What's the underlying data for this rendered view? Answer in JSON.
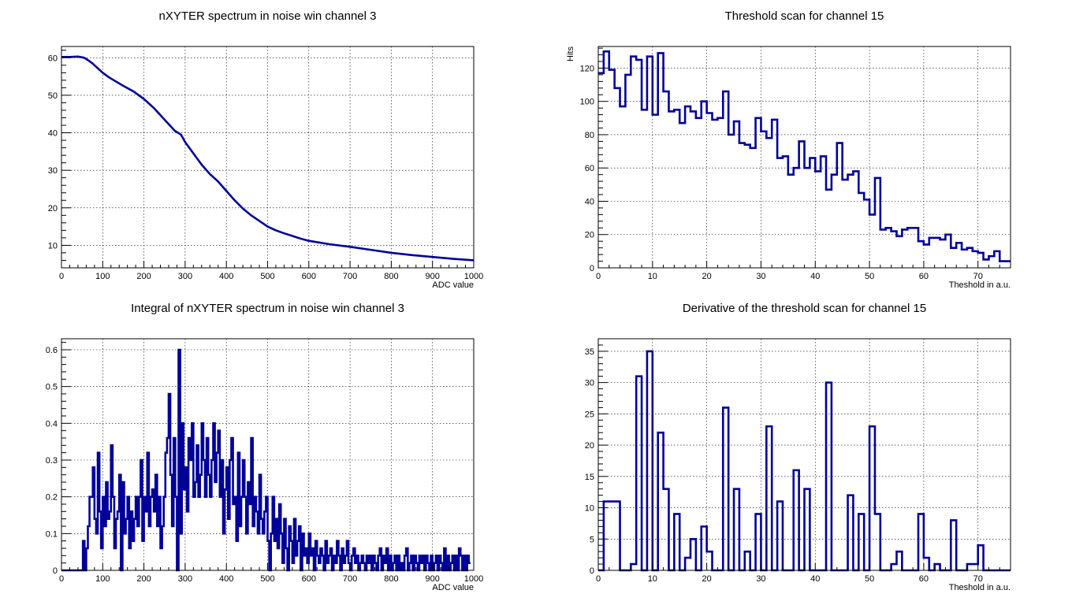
{
  "chart_data": [
    {
      "type": "line",
      "title": "nXYTER spectrum in noise win channel 3",
      "xlabel": "ADC value",
      "ylabel": "",
      "xlim": [
        0,
        1000
      ],
      "ylim": [
        4,
        63
      ],
      "xticks": [
        0,
        100,
        200,
        300,
        400,
        500,
        600,
        700,
        800,
        900,
        1000
      ],
      "yticks": [
        10,
        20,
        30,
        40,
        50,
        60
      ],
      "grid": true,
      "color": "#000099",
      "x": [
        0,
        20,
        40,
        55,
        65,
        75,
        85,
        100,
        115,
        130,
        150,
        175,
        200,
        225,
        250,
        275,
        290,
        300,
        320,
        340,
        360,
        380,
        400,
        420,
        440,
        460,
        480,
        500,
        520,
        540,
        560,
        580,
        600,
        650,
        700,
        750,
        800,
        850,
        900,
        950,
        1000
      ],
      "y": [
        60.2,
        60.2,
        60.3,
        60.0,
        59.3,
        58.5,
        57.5,
        56.0,
        54.8,
        53.8,
        52.5,
        51.0,
        49.0,
        46.5,
        43.5,
        40.5,
        39.5,
        37.5,
        34.5,
        31.5,
        29.0,
        27.0,
        24.5,
        22.0,
        19.8,
        18.0,
        16.5,
        15.0,
        14.0,
        13.2,
        12.5,
        11.8,
        11.2,
        10.3,
        9.6,
        8.8,
        8.0,
        7.4,
        6.9,
        6.4,
        6.0
      ]
    },
    {
      "type": "line",
      "title": "Integral of nXYTER spectrum in noise win channel 3",
      "xlabel": "ADC value",
      "ylabel": "",
      "xlim": [
        0,
        1000
      ],
      "ylim": [
        0,
        0.63
      ],
      "xticks": [
        0,
        100,
        200,
        300,
        400,
        500,
        600,
        700,
        800,
        900,
        1000
      ],
      "yticks": [
        0,
        0.1,
        0.2,
        0.3,
        0.4,
        0.5,
        0.6
      ],
      "ytick_labels": [
        "0",
        "0.1",
        "0.2",
        "0.3",
        "0.4",
        "0.5",
        "0.6"
      ],
      "grid": true,
      "color": "#000099",
      "step": "hist",
      "x0": 0,
      "bin_width": 4,
      "values": [
        0,
        0,
        0,
        0,
        0,
        0,
        0,
        0,
        0,
        0,
        0,
        0,
        0,
        0.08,
        0,
        0.06,
        0.12,
        0.2,
        0.2,
        0.28,
        0.14,
        0.1,
        0.32,
        0.16,
        0.06,
        0.2,
        0.12,
        0.24,
        0.14,
        0.16,
        0.34,
        0.2,
        0.06,
        0.14,
        0.16,
        0.26,
        0,
        0.24,
        0.1,
        0.14,
        0.2,
        0.06,
        0.16,
        0.08,
        0.14,
        0.2,
        0.12,
        0.2,
        0.3,
        0.08,
        0.2,
        0.16,
        0.32,
        0.12,
        0.2,
        0.22,
        0.16,
        0.26,
        0.12,
        0.2,
        0.06,
        0.12,
        0.2,
        0.32,
        0.36,
        0.48,
        0.26,
        0.12,
        0.36,
        0.2,
        0,
        0.6,
        0.1,
        0.4,
        0.22,
        0.28,
        0.16,
        0.36,
        0.3,
        0.4,
        0.2,
        0.24,
        0.34,
        0.2,
        0.26,
        0.4,
        0.3,
        0.2,
        0.36,
        0.26,
        0.2,
        0.3,
        0.4,
        0.24,
        0.32,
        0.38,
        0.2,
        0.3,
        0.1,
        0.22,
        0.28,
        0.14,
        0.3,
        0.36,
        0.18,
        0.2,
        0.08,
        0.32,
        0.12,
        0.2,
        0.3,
        0.2,
        0.1,
        0.24,
        0.18,
        0.36,
        0.12,
        0.2,
        0.16,
        0.1,
        0.26,
        0.14,
        0.1,
        0.16,
        0.2,
        0.08,
        0,
        0.1,
        0.2,
        0.08,
        0.14,
        0.06,
        0.18,
        0.1,
        0.02,
        0.14,
        0.06,
        0,
        0.12,
        0.08,
        0.02,
        0.14,
        0.04,
        0.08,
        0.12,
        0,
        0.1,
        0.04,
        0.06,
        0.02,
        0.1,
        0.04,
        0.06,
        0,
        0.08,
        0.04,
        0.02,
        0.06,
        0.04,
        0,
        0.08,
        0.02,
        0.04,
        0.06,
        0,
        0.04,
        0.02,
        0.08,
        0.04,
        0,
        0.06,
        0.02,
        0.04,
        0.08,
        0.02,
        0,
        0.04,
        0.06,
        0.02,
        0.04,
        0,
        0.02,
        0.04,
        0.02,
        0,
        0.04,
        0.02,
        0.04,
        0,
        0.04,
        0.02,
        0,
        0.04,
        0.06,
        0,
        0.04,
        0.02,
        0.06,
        0,
        0.04,
        0,
        0.02,
        0.04,
        0,
        0.04,
        0,
        0.02,
        0,
        0.04,
        0.06,
        0,
        0.02,
        0.04,
        0,
        0.04,
        0.02,
        0,
        0.04,
        0.02,
        0.04,
        0,
        0.04,
        0.02,
        0,
        0.04,
        0,
        0.02,
        0.04,
        0,
        0.04,
        0.02,
        0,
        0.06,
        0,
        0.04,
        0,
        0.02,
        0.04,
        0,
        0.04,
        0,
        0.06,
        0.04,
        0,
        0.04,
        0,
        0.04,
        0.02
      ]
    },
    {
      "type": "line",
      "title": "Threshold scan for channel 15",
      "xlabel": "Theshold in a.u.",
      "ylabel": "Hits",
      "xlim": [
        0,
        76
      ],
      "ylim": [
        0,
        133
      ],
      "xticks": [
        0,
        10,
        20,
        30,
        40,
        50,
        60,
        70
      ],
      "yticks": [
        0,
        20,
        40,
        60,
        80,
        100,
        120
      ],
      "grid": true,
      "color": "#000099",
      "step": "hist",
      "x0": 0,
      "bin_width": 1,
      "values": [
        117,
        130,
        119,
        108,
        97,
        116,
        127,
        125,
        95,
        127,
        92,
        129,
        106,
        94,
        95,
        87,
        97,
        94,
        90,
        100,
        93,
        89,
        90,
        106,
        80,
        88,
        75,
        74,
        72,
        90,
        82,
        78,
        89,
        66,
        67,
        56,
        60,
        76,
        60,
        66,
        58,
        67,
        47,
        56,
        75,
        53,
        56,
        58,
        45,
        41,
        32,
        54,
        23,
        24,
        22,
        19,
        23,
        24,
        24,
        16,
        14,
        18,
        18,
        17,
        20,
        12,
        15,
        11,
        12,
        10,
        9,
        5,
        7,
        10,
        4,
        4
      ]
    },
    {
      "type": "line",
      "title": "Derivative of the threshold scan for channel 15",
      "xlabel": "Theshold in a.u.",
      "ylabel": "",
      "xlim": [
        0,
        76
      ],
      "ylim": [
        0,
        37
      ],
      "xticks": [
        0,
        10,
        20,
        30,
        40,
        50,
        60,
        70
      ],
      "yticks": [
        0,
        5,
        10,
        15,
        20,
        25,
        30,
        35
      ],
      "grid": true,
      "color": "#000099",
      "step": "hist",
      "x0": 0,
      "bin_width": 1,
      "values": [
        0,
        11,
        11,
        11,
        0,
        0,
        1,
        31,
        0,
        35,
        0,
        22,
        13,
        0,
        9,
        0,
        2,
        5,
        0,
        7,
        3,
        0,
        0,
        26,
        0,
        13,
        0,
        3,
        0,
        9,
        0,
        23,
        0,
        11,
        0,
        0,
        16,
        0,
        13,
        0,
        0,
        0,
        30,
        0,
        0,
        0,
        12,
        0,
        9,
        0,
        23,
        9,
        0,
        0,
        1,
        3,
        0,
        0,
        0,
        9,
        2,
        0,
        1,
        0,
        0,
        8,
        0,
        0,
        1,
        1,
        4,
        0,
        0,
        0,
        0,
        0
      ]
    }
  ]
}
